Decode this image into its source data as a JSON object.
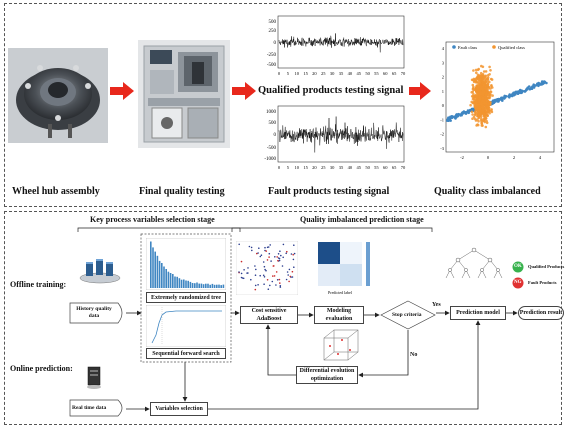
{
  "top": {
    "captions": {
      "hub": "Wheel hub assembly",
      "final": "Final quality testing",
      "qualified_signal": "Qualified products testing signal",
      "fault_signal": "Fault products testing signal",
      "imbalanced": "Quality class imbalanced"
    },
    "signal_axis": {
      "qualified_y": [
        "500",
        "250",
        "0",
        "-250",
        "-500"
      ],
      "fault_y": [
        "1000",
        "500",
        "0",
        "-500",
        "-1000"
      ],
      "x": [
        "0",
        "5",
        "10",
        "15",
        "20",
        "25",
        "30",
        "35",
        "40",
        "45",
        "50",
        "55",
        "60",
        "65",
        "70"
      ]
    },
    "scatter": {
      "legend_fault": "Fault class",
      "legend_qualified": "Qualified class",
      "y_ticks": [
        "4",
        "3",
        "2",
        "1",
        "0",
        "-1",
        "-2",
        "-3"
      ],
      "x_ticks": [
        "-2",
        "0",
        "2",
        "4"
      ]
    }
  },
  "bottom": {
    "stage_key": "Key process variables selection stage",
    "stage_quality": "Quality imbalanced prediction stage",
    "offline": "Offline training:",
    "online": "Online prediction:",
    "history": "History quality data",
    "realtime": "Real time data",
    "ert": "Extremely randomized tree",
    "sfs": "Sequential forward search",
    "varsel": "Variables selection",
    "cost": "Cost sensitive AdaBoost",
    "modeling": "Modeling evaluation",
    "stop": "Stop criteria",
    "yes": "Yes",
    "no": "No",
    "prediction_model": "Prediction model",
    "prediction_result": "Prediction result",
    "de": "Differential evolution optimization",
    "ok_badge": "OK",
    "ng_badge": "NG",
    "qualified_products": "Qualified Products",
    "fault_products": "Fault Products",
    "confusion_axis": "Predicted label"
  },
  "colors": {
    "arrow_red": "#e8281c",
    "orange": "#f29530",
    "blue": "#3f86c2",
    "ok_green": "#37b24d",
    "ng_red": "#e03131"
  }
}
